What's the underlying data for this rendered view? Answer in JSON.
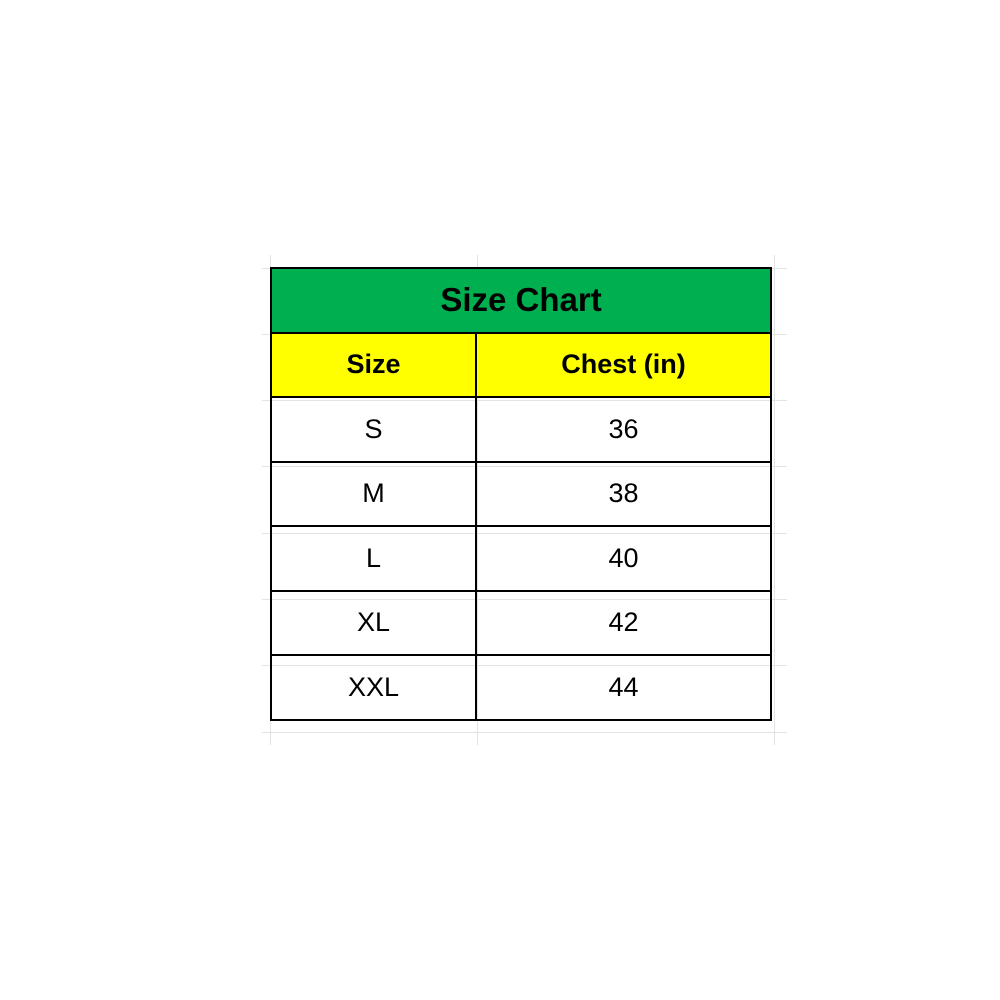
{
  "title": "Size Chart",
  "headers": [
    "Size",
    "Chest (in)"
  ],
  "rows": [
    {
      "size": "S",
      "chest": "36"
    },
    {
      "size": "M",
      "chest": "38"
    },
    {
      "size": "L",
      "chest": "40"
    },
    {
      "size": "XL",
      "chest": "42"
    },
    {
      "size": "XXL",
      "chest": "44"
    }
  ],
  "colors": {
    "title_bg": "#00B050",
    "header_bg": "#FFFF00"
  }
}
